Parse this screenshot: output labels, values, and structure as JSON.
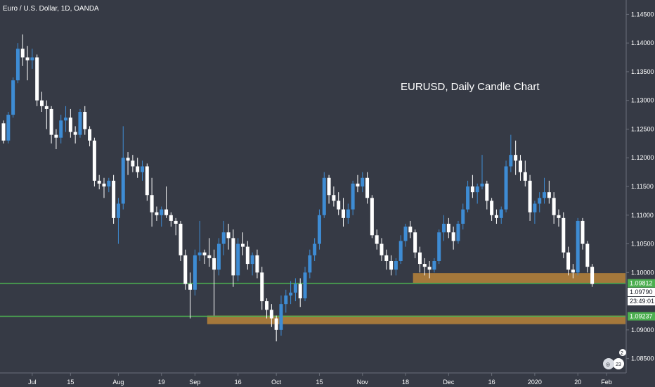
{
  "header": {
    "symbol": "Euro / U.S. Dollar, 1D, OANDA"
  },
  "chart_data": {
    "type": "candlestick",
    "title": "EURUSD, Daily Candle Chart",
    "ylim": [
      1.0825,
      1.1475
    ],
    "y_ticks": [
      "1.14500",
      "1.14000",
      "1.13500",
      "1.13000",
      "1.12500",
      "1.12000",
      "1.11500",
      "1.11000",
      "1.10500",
      "1.10000",
      "1.09000",
      "1.08500"
    ],
    "x_ticks": [
      "Jul",
      "15",
      "Aug",
      "19",
      "Sep",
      "16",
      "Oct",
      "15",
      "Nov",
      "18",
      "Dec",
      "16",
      "2020",
      "20",
      "Feb"
    ],
    "x_tick_index": [
      6,
      14,
      24,
      33,
      40,
      49,
      57,
      66,
      75,
      84,
      93,
      102,
      111,
      120,
      126
    ],
    "candles": [
      [
        1.126,
        1.1265,
        1.1225,
        1.123
      ],
      [
        1.123,
        1.128,
        1.1225,
        1.1275
      ],
      [
        1.1275,
        1.134,
        1.127,
        1.1335
      ],
      [
        1.1335,
        1.14,
        1.133,
        1.139
      ],
      [
        1.139,
        1.1415,
        1.136,
        1.1375
      ],
      [
        1.1375,
        1.1395,
        1.1335,
        1.137
      ],
      [
        1.137,
        1.139,
        1.1355,
        1.1375
      ],
      [
        1.1375,
        1.138,
        1.129,
        1.13
      ],
      [
        1.13,
        1.1315,
        1.128,
        1.129
      ],
      [
        1.129,
        1.13,
        1.125,
        1.1285
      ],
      [
        1.1285,
        1.129,
        1.1225,
        1.124
      ],
      [
        1.124,
        1.125,
        1.1215,
        1.1235
      ],
      [
        1.1235,
        1.1275,
        1.1225,
        1.1265
      ],
      [
        1.1265,
        1.129,
        1.1245,
        1.127
      ],
      [
        1.127,
        1.1285,
        1.1235,
        1.1245
      ],
      [
        1.1245,
        1.1255,
        1.1225,
        1.124
      ],
      [
        1.124,
        1.1285,
        1.1235,
        1.128
      ],
      [
        1.128,
        1.129,
        1.124,
        1.125
      ],
      [
        1.125,
        1.1255,
        1.122,
        1.123
      ],
      [
        1.123,
        1.1235,
        1.115,
        1.116
      ],
      [
        1.116,
        1.117,
        1.1145,
        1.1155
      ],
      [
        1.1155,
        1.1165,
        1.113,
        1.115
      ],
      [
        1.115,
        1.1165,
        1.114,
        1.116
      ],
      [
        1.116,
        1.117,
        1.1085,
        1.1095
      ],
      [
        1.1095,
        1.113,
        1.105,
        1.112
      ],
      [
        1.112,
        1.1255,
        1.111,
        1.12
      ],
      [
        1.12,
        1.121,
        1.117,
        1.1195
      ],
      [
        1.1195,
        1.1205,
        1.1175,
        1.1185
      ],
      [
        1.1185,
        1.12,
        1.1165,
        1.1175
      ],
      [
        1.1175,
        1.1195,
        1.116,
        1.1185
      ],
      [
        1.1185,
        1.119,
        1.1125,
        1.1135
      ],
      [
        1.1135,
        1.1165,
        1.108,
        1.1105
      ],
      [
        1.1105,
        1.1115,
        1.109,
        1.11
      ],
      [
        1.11,
        1.1115,
        1.108,
        1.111
      ],
      [
        1.111,
        1.115,
        1.1095,
        1.11
      ],
      [
        1.11,
        1.1105,
        1.108,
        1.109
      ],
      [
        1.109,
        1.1095,
        1.1065,
        1.1085
      ],
      [
        1.1085,
        1.109,
        1.102,
        1.103
      ],
      [
        1.103,
        1.104,
        1.097,
        1.098
      ],
      [
        1.098,
        1.1,
        1.092,
        1.097
      ],
      [
        1.097,
        1.104,
        1.096,
        1.103
      ],
      [
        1.103,
        1.109,
        1.102,
        1.1035
      ],
      [
        1.1035,
        1.104,
        1.1015,
        1.103
      ],
      [
        1.103,
        1.106,
        1.101,
        1.1025
      ],
      [
        1.1025,
        1.104,
        1.0925,
        1.1005
      ],
      [
        1.1005,
        1.106,
        1.0995,
        1.105
      ],
      [
        1.105,
        1.109,
        1.103,
        1.107
      ],
      [
        1.107,
        1.1085,
        1.104,
        1.106
      ],
      [
        1.106,
        1.1075,
        1.0975,
        1.0995
      ],
      [
        1.0995,
        1.106,
        1.0985,
        1.105
      ],
      [
        1.105,
        1.107,
        1.103,
        1.1045
      ],
      [
        1.1045,
        1.1055,
        1.1005,
        1.1015
      ],
      [
        1.1015,
        1.1035,
        1.0995,
        1.103
      ],
      [
        1.103,
        1.104,
        1.099,
        1.1
      ],
      [
        1.1,
        1.101,
        1.0935,
        1.095
      ],
      [
        1.095,
        1.0955,
        1.092,
        1.0935
      ],
      [
        1.0935,
        1.0945,
        1.0905,
        1.092
      ],
      [
        1.092,
        1.0925,
        1.088,
        1.09
      ],
      [
        1.09,
        1.096,
        1.089,
        1.0945
      ],
      [
        1.0945,
        1.097,
        1.093,
        1.096
      ],
      [
        1.096,
        1.0985,
        1.0945,
        1.0965
      ],
      [
        1.0965,
        1.099,
        1.095,
        1.098
      ],
      [
        1.098,
        1.099,
        1.094,
        1.0955
      ],
      [
        1.0955,
        1.101,
        1.095,
        1.1
      ],
      [
        1.1,
        1.104,
        1.099,
        1.103
      ],
      [
        1.103,
        1.106,
        1.102,
        1.105
      ],
      [
        1.105,
        1.111,
        1.104,
        1.11
      ],
      [
        1.11,
        1.1175,
        1.1095,
        1.1165
      ],
      [
        1.1165,
        1.117,
        1.112,
        1.1135
      ],
      [
        1.1135,
        1.115,
        1.1115,
        1.1125
      ],
      [
        1.1125,
        1.114,
        1.11,
        1.111
      ],
      [
        1.111,
        1.113,
        1.108,
        1.1095
      ],
      [
        1.1095,
        1.112,
        1.1085,
        1.111
      ],
      [
        1.111,
        1.116,
        1.11,
        1.1155
      ],
      [
        1.1155,
        1.117,
        1.114,
        1.115
      ],
      [
        1.115,
        1.1175,
        1.114,
        1.1165
      ],
      [
        1.1165,
        1.1175,
        1.112,
        1.113
      ],
      [
        1.113,
        1.1135,
        1.106,
        1.1065
      ],
      [
        1.1065,
        1.1075,
        1.104,
        1.105
      ],
      [
        1.105,
        1.106,
        1.102,
        1.103
      ],
      [
        1.103,
        1.104,
        1.1005,
        1.102
      ],
      [
        1.102,
        1.103,
        1.0995,
        1.1005
      ],
      [
        1.1005,
        1.1025,
        1.0995,
        1.102
      ],
      [
        1.102,
        1.1065,
        1.1015,
        1.1055
      ],
      [
        1.1055,
        1.1085,
        1.1045,
        1.108
      ],
      [
        1.108,
        1.109,
        1.106,
        1.107
      ],
      [
        1.107,
        1.1075,
        1.1025,
        1.1035
      ],
      [
        1.1035,
        1.1045,
        1.1,
        1.1015
      ],
      [
        1.1015,
        1.1025,
        1.0995,
        1.101
      ],
      [
        1.101,
        1.102,
        1.099,
        1.1005
      ],
      [
        1.1005,
        1.1025,
        1.1,
        1.102
      ],
      [
        1.102,
        1.1075,
        1.1015,
        1.107
      ],
      [
        1.107,
        1.11,
        1.1055,
        1.1085
      ],
      [
        1.1085,
        1.1095,
        1.106,
        1.107
      ],
      [
        1.107,
        1.108,
        1.104,
        1.1055
      ],
      [
        1.1055,
        1.109,
        1.105,
        1.1085
      ],
      [
        1.1085,
        1.112,
        1.1075,
        1.111
      ],
      [
        1.111,
        1.116,
        1.1105,
        1.115
      ],
      [
        1.115,
        1.117,
        1.113,
        1.114
      ],
      [
        1.114,
        1.1155,
        1.112,
        1.115
      ],
      [
        1.115,
        1.1205,
        1.1145,
        1.1155
      ],
      [
        1.1155,
        1.116,
        1.111,
        1.1125
      ],
      [
        1.1125,
        1.113,
        1.109,
        1.11
      ],
      [
        1.11,
        1.111,
        1.1085,
        1.1095
      ],
      [
        1.1095,
        1.1115,
        1.1085,
        1.111
      ],
      [
        1.111,
        1.1195,
        1.1105,
        1.1185
      ],
      [
        1.1185,
        1.124,
        1.1175,
        1.1205
      ],
      [
        1.1205,
        1.123,
        1.117,
        1.1195
      ],
      [
        1.1195,
        1.1205,
        1.116,
        1.1175
      ],
      [
        1.1175,
        1.1195,
        1.115,
        1.116
      ],
      [
        1.116,
        1.117,
        1.109,
        1.1105
      ],
      [
        1.1105,
        1.1125,
        1.1085,
        1.112
      ],
      [
        1.112,
        1.114,
        1.1105,
        1.113
      ],
      [
        1.113,
        1.1165,
        1.112,
        1.114
      ],
      [
        1.114,
        1.116,
        1.112,
        1.113
      ],
      [
        1.113,
        1.114,
        1.1085,
        1.11
      ],
      [
        1.11,
        1.111,
        1.108,
        1.1095
      ],
      [
        1.1095,
        1.1105,
        1.1025,
        1.1035
      ],
      [
        1.1035,
        1.1045,
        1.0995,
        1.1005
      ],
      [
        1.1005,
        1.1015,
        1.099,
        1.1
      ],
      [
        1.1,
        1.1095,
        1.0995,
        1.109
      ],
      [
        1.109,
        1.1095,
        1.104,
        1.105
      ],
      [
        1.105,
        1.1055,
        1.1,
        1.101
      ],
      [
        1.101,
        1.1015,
        1.0975,
        1.098
      ]
    ],
    "levels": [
      {
        "name": "level-1-09812",
        "value": 1.09812,
        "label": "1.09812",
        "color": "#4caf50"
      },
      {
        "name": "level-1-09237",
        "value": 1.09237,
        "label": "1.09237",
        "color": "#4caf50"
      }
    ],
    "zones": [
      {
        "name": "zone-upper",
        "from": 1.0982,
        "to": 1.0999,
        "start": 86,
        "end": 130
      },
      {
        "name": "zone-lower",
        "from": 1.091,
        "to": 1.0925,
        "start": 43,
        "end": 131
      }
    ],
    "current_price": {
      "value": "1.09790",
      "timer": "23:49:01"
    },
    "colors": {
      "up": "#3e8cd4",
      "down": "#ffffff",
      "background": "#363a45",
      "axis_text": "#ffffff",
      "zone": "#b8843a",
      "level": "#4caf50"
    }
  }
}
